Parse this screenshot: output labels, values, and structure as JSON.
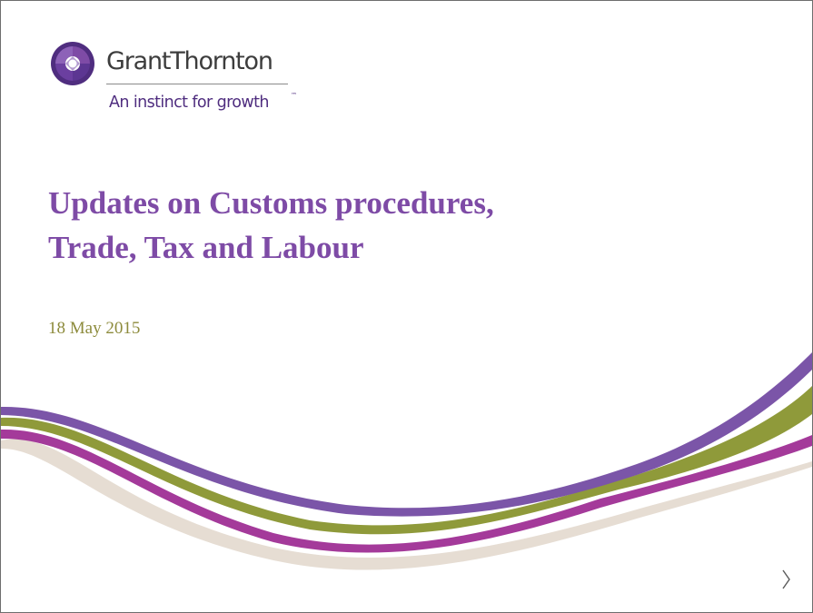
{
  "logo": {
    "name": "GrantThornton",
    "tagline": "An instinct for growth",
    "trademark": "™",
    "mark_colors": [
      "#4f2d7f",
      "#7e4ba6",
      "#b39bd0"
    ]
  },
  "slide": {
    "title_lines": [
      "Updates on Customs procedures,",
      "Trade, Tax and Labour"
    ],
    "date": "18 May 2015",
    "next_icon": "chevron-right-icon"
  },
  "colors": {
    "title": "#7e4ba6",
    "date": "#8d8b3c",
    "band_purple": "#7b55a8",
    "band_olive": "#8f9a3a",
    "band_magenta": "#a43a9a",
    "band_beige": "#e6ddd3"
  }
}
